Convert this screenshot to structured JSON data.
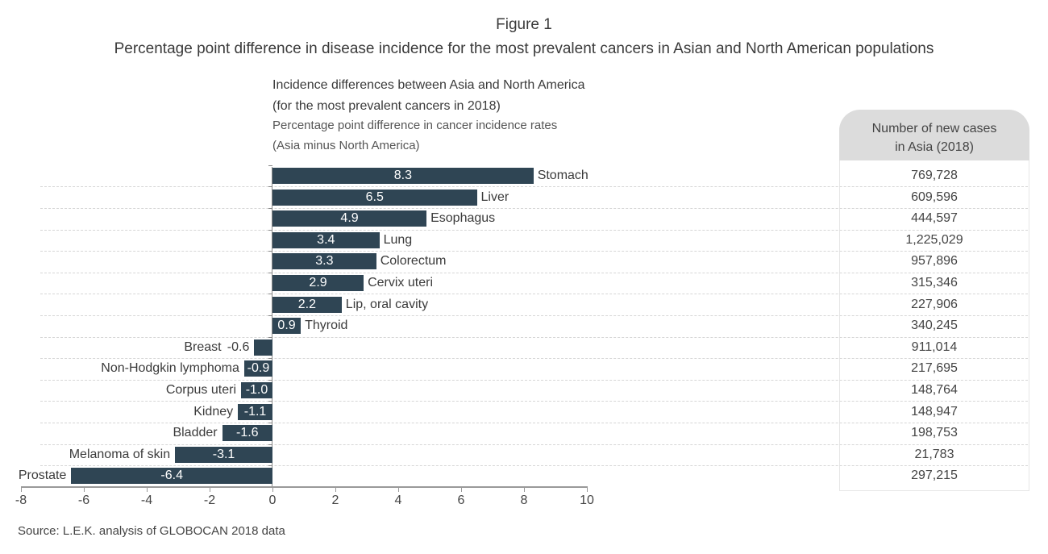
{
  "figure": {
    "label": "Figure 1",
    "title": "Percentage point difference in disease incidence for the most prevalent cancers in Asian and North American populations"
  },
  "chart": {
    "title_line1": "Incidence differences between Asia and North America",
    "title_line2": "(for the most prevalent cancers in 2018)",
    "subtitle_line1": "Percentage point difference in cancer incidence rates",
    "subtitle_line2": "(Asia minus North America)",
    "x_ticks": [
      "-8",
      "-6",
      "-4",
      "-2",
      "0",
      "2",
      "4",
      "6",
      "8",
      "10"
    ],
    "bar_color": "#2f4554"
  },
  "table": {
    "header_line1": "Number of new cases",
    "header_line2": "in Asia (2018)"
  },
  "rows": [
    {
      "name": "Stomach",
      "value": "8.3",
      "cases": "769,728"
    },
    {
      "name": "Liver",
      "value": "6.5",
      "cases": "609,596"
    },
    {
      "name": "Esophagus",
      "value": "4.9",
      "cases": "444,597"
    },
    {
      "name": "Lung",
      "value": "3.4",
      "cases": "1,225,029"
    },
    {
      "name": "Colorectum",
      "value": "3.3",
      "cases": "957,896"
    },
    {
      "name": "Cervix uteri",
      "value": "2.9",
      "cases": "315,346"
    },
    {
      "name": "Lip, oral cavity",
      "value": "2.2",
      "cases": "227,906"
    },
    {
      "name": "Thyroid",
      "value": "0.9",
      "cases": "340,245"
    },
    {
      "name": "Breast",
      "value": "-0.6",
      "cases": "911,014"
    },
    {
      "name": "Non-Hodgkin lymphoma",
      "value": "-0.9",
      "cases": "217,695"
    },
    {
      "name": "Corpus uteri",
      "value": "-1.0",
      "cases": "148,764"
    },
    {
      "name": "Kidney",
      "value": "-1.1",
      "cases": "148,947"
    },
    {
      "name": "Bladder",
      "value": "-1.6",
      "cases": "198,753"
    },
    {
      "name": "Melanoma of skin",
      "value": "-3.1",
      "cases": "21,783"
    },
    {
      "name": "Prostate",
      "value": "-6.4",
      "cases": "297,215"
    }
  ],
  "source": "Source:  L.E.K. analysis of GLOBOCAN 2018 data",
  "chart_data": {
    "type": "bar",
    "orientation": "horizontal",
    "title": "Incidence differences between Asia and North America (for the most prevalent cancers in 2018)",
    "subtitle": "Percentage point difference in cancer incidence rates (Asia minus North America)",
    "categories": [
      "Stomach",
      "Liver",
      "Esophagus",
      "Lung",
      "Colorectum",
      "Cervix uteri",
      "Lip, oral cavity",
      "Thyroid",
      "Breast",
      "Non-Hodgkin lymphoma",
      "Corpus uteri",
      "Kidney",
      "Bladder",
      "Melanoma of skin",
      "Prostate"
    ],
    "values": [
      8.3,
      6.5,
      4.9,
      3.4,
      3.3,
      2.9,
      2.2,
      0.9,
      -0.6,
      -0.9,
      -1.0,
      -1.1,
      -1.6,
      -3.1,
      -6.4
    ],
    "xlabel": "",
    "ylabel": "",
    "xlim": [
      -8,
      10
    ],
    "x_ticks": [
      -8,
      -6,
      -4,
      -2,
      0,
      2,
      4,
      6,
      8,
      10
    ],
    "grid": "dashed horizontal row separators",
    "legend": "none",
    "side_table": {
      "header": "Number of new cases in Asia (2018)",
      "values": [
        769728,
        609596,
        444597,
        1225029,
        957896,
        315346,
        227906,
        340245,
        911014,
        217695,
        148764,
        148947,
        198753,
        21783,
        297215
      ]
    }
  }
}
